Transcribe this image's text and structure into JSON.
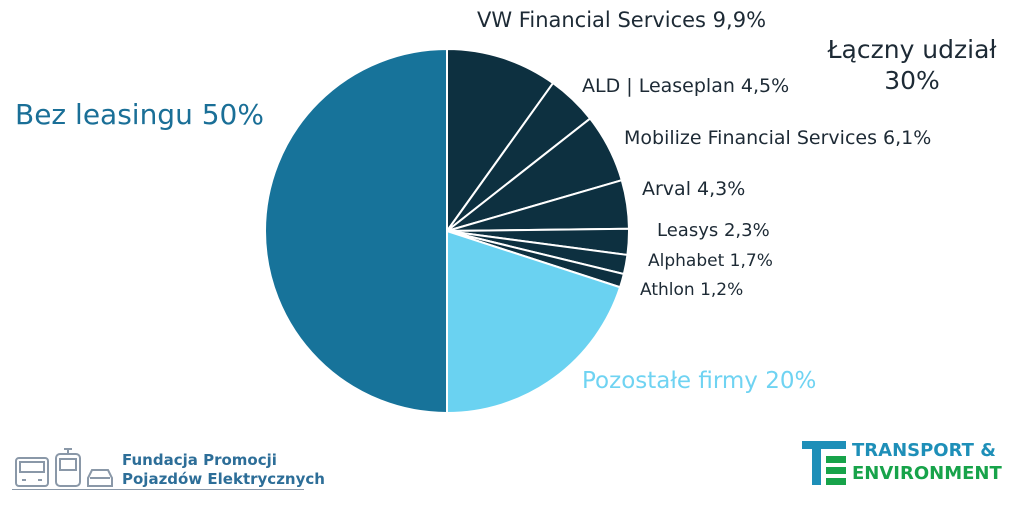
{
  "chart_data": {
    "type": "pie",
    "slices": [
      {
        "label": "VW Financial Services 9,9%",
        "value": 9.9,
        "color": "#0d3040"
      },
      {
        "label": "ALD | Leaseplan 4,5%",
        "value": 4.5,
        "color": "#0d3040"
      },
      {
        "label": "Mobilize Financial Services 6,1%",
        "value": 6.1,
        "color": "#0d3040"
      },
      {
        "label": "Arval 4,3%",
        "value": 4.3,
        "color": "#0d3040"
      },
      {
        "label": "Leasys 2,3%",
        "value": 2.3,
        "color": "#0d3040"
      },
      {
        "label": "Alphabet 1,7%",
        "value": 1.7,
        "color": "#0d3040"
      },
      {
        "label": "Athlon 1,2%",
        "value": 1.2,
        "color": "#0d3040"
      },
      {
        "label": "Pozostałe firmy 20%",
        "value": 20,
        "color": "#6ad2f1"
      },
      {
        "label": "Bez leasingu 50%",
        "value": 50,
        "color": "#17739a"
      }
    ],
    "annotation": {
      "line1": "Łączny udział",
      "line2": "30%"
    }
  },
  "logos": {
    "fpp": {
      "line1": "Fundacja Promocji",
      "line2": "Pojazdów Elektrycznych"
    },
    "te": {
      "line1": "TRANSPORT &",
      "line2": "ENVIRONMENT"
    }
  }
}
